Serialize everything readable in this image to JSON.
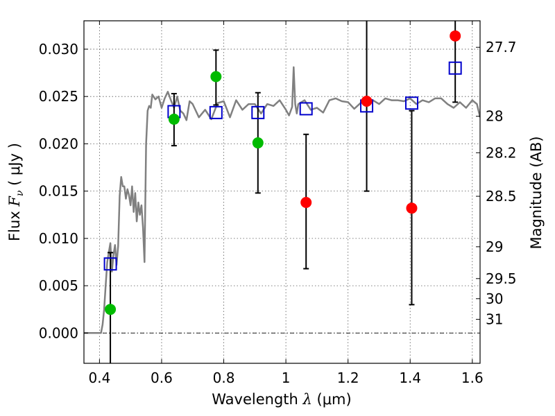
{
  "chart_data": {
    "type": "scatter",
    "xlabel": "Wavelength  λ (μm)",
    "ylabel": "Flux  Fν  ( μJy )",
    "ylabel_parts": {
      "prefix": "Flux  ",
      "symbol": "F",
      "subscript": "ν",
      "suffix": "  ( μJy )"
    },
    "xlabel_parts": {
      "prefix": "Wavelength  ",
      "symbol": "λ",
      "suffix": " (μm)"
    },
    "y2label": "Magnitude (AB)",
    "xlim": [
      0.35,
      1.625
    ],
    "ylim": [
      -0.0032,
      0.033
    ],
    "grid": true,
    "x_ticks": [
      {
        "value": 0.4,
        "label": "0.4"
      },
      {
        "value": 0.6,
        "label": "0.6"
      },
      {
        "value": 0.8,
        "label": "0.8"
      },
      {
        "value": 1.0,
        "label": "1"
      },
      {
        "value": 1.2,
        "label": "1.2"
      },
      {
        "value": 1.4,
        "label": "1.4"
      },
      {
        "value": 1.6,
        "label": "1.6"
      }
    ],
    "y_ticks": [
      {
        "value": 0.0,
        "label": "0.000"
      },
      {
        "value": 0.005,
        "label": "0.005"
      },
      {
        "value": 0.01,
        "label": "0.010"
      },
      {
        "value": 0.015,
        "label": "0.015"
      },
      {
        "value": 0.02,
        "label": "0.020"
      },
      {
        "value": 0.025,
        "label": "0.025"
      },
      {
        "value": 0.03,
        "label": "0.030"
      }
    ],
    "mag_ticks": [
      {
        "value": 27.7,
        "label": "27.7"
      },
      {
        "value": 28.0,
        "label": "28"
      },
      {
        "value": 28.2,
        "label": "28.2"
      },
      {
        "value": 28.5,
        "label": "28.5"
      },
      {
        "value": 29.0,
        "label": "29"
      },
      {
        "value": 29.5,
        "label": "29.5"
      },
      {
        "value": 30.0,
        "label": "30"
      },
      {
        "value": 31.0,
        "label": "31"
      }
    ],
    "zero_line": 0.0,
    "colors": {
      "model": "#808080",
      "model_squares": "#0000cc",
      "detections": "#00bb00",
      "upper_limits": "#ff0000",
      "errorbars": "#000000",
      "grid": "#555555"
    },
    "model_spectrum": {
      "x": [
        0.35,
        0.39,
        0.4,
        0.405,
        0.41,
        0.415,
        0.42,
        0.425,
        0.43,
        0.435,
        0.44,
        0.445,
        0.45,
        0.455,
        0.46,
        0.465,
        0.47,
        0.475,
        0.48,
        0.485,
        0.49,
        0.495,
        0.5,
        0.505,
        0.51,
        0.515,
        0.52,
        0.525,
        0.53,
        0.535,
        0.54,
        0.545,
        0.55,
        0.555,
        0.56,
        0.565,
        0.57,
        0.58,
        0.59,
        0.6,
        0.61,
        0.62,
        0.63,
        0.64,
        0.65,
        0.66,
        0.67,
        0.68,
        0.69,
        0.7,
        0.72,
        0.74,
        0.76,
        0.78,
        0.8,
        0.82,
        0.84,
        0.86,
        0.88,
        0.9,
        0.92,
        0.94,
        0.96,
        0.98,
        1.0,
        1.01,
        1.02,
        1.025,
        1.03,
        1.035,
        1.04,
        1.06,
        1.08,
        1.1,
        1.12,
        1.14,
        1.16,
        1.18,
        1.2,
        1.22,
        1.24,
        1.26,
        1.28,
        1.3,
        1.32,
        1.34,
        1.36,
        1.38,
        1.4,
        1.42,
        1.44,
        1.46,
        1.48,
        1.5,
        1.52,
        1.54,
        1.56,
        1.58,
        1.6,
        1.615,
        1.625
      ],
      "y": [
        0.0,
        0.0,
        0.0,
        0.0,
        0.0009,
        0.0025,
        0.005,
        0.0075,
        0.0085,
        0.0095,
        0.0065,
        0.0082,
        0.0093,
        0.0072,
        0.0092,
        0.0145,
        0.0165,
        0.0155,
        0.0155,
        0.0142,
        0.0152,
        0.0146,
        0.0135,
        0.0155,
        0.0128,
        0.0148,
        0.0118,
        0.0138,
        0.0125,
        0.0135,
        0.0112,
        0.0075,
        0.02,
        0.0235,
        0.024,
        0.0238,
        0.0252,
        0.0247,
        0.025,
        0.0238,
        0.0248,
        0.0255,
        0.0246,
        0.0238,
        0.025,
        0.0235,
        0.0232,
        0.0225,
        0.0245,
        0.0242,
        0.0228,
        0.0236,
        0.0226,
        0.0243,
        0.0245,
        0.0228,
        0.0246,
        0.0236,
        0.0242,
        0.0242,
        0.0232,
        0.0242,
        0.024,
        0.0246,
        0.0236,
        0.023,
        0.0239,
        0.0281,
        0.0242,
        0.0232,
        0.0242,
        0.0246,
        0.0236,
        0.0238,
        0.0233,
        0.0246,
        0.0248,
        0.0245,
        0.0244,
        0.0237,
        0.0243,
        0.0248,
        0.0246,
        0.0242,
        0.0248,
        0.0246,
        0.0246,
        0.0245,
        0.0248,
        0.0242,
        0.0246,
        0.0244,
        0.0248,
        0.0248,
        0.0242,
        0.0238,
        0.0244,
        0.0238,
        0.0246,
        0.0242,
        0.0228
      ]
    },
    "model_photometry": {
      "x": [
        0.435,
        0.64,
        0.775,
        0.91,
        1.065,
        1.26,
        1.405,
        1.545
      ],
      "y": [
        0.0073,
        0.0234,
        0.0233,
        0.0233,
        0.0237,
        0.024,
        0.0243,
        0.028
      ]
    },
    "detections": {
      "x": [
        0.435,
        0.64,
        0.775,
        0.91
      ],
      "y": [
        0.0025,
        0.0226,
        0.0271,
        0.0201
      ],
      "err_low": [
        0.006,
        0.0028,
        0.003,
        0.0053
      ],
      "err_high": [
        0.006,
        0.0027,
        0.0028,
        0.0053
      ]
    },
    "upper_limits": {
      "x": [
        1.065,
        1.26,
        1.405,
        1.545
      ],
      "y": [
        0.0138,
        0.0245,
        0.0132,
        0.0314
      ],
      "err_low": [
        0.007,
        0.0095,
        0.0102,
        0.007
      ],
      "err_high": [
        0.0072,
        0.0095,
        0.0103,
        0.007
      ]
    }
  }
}
